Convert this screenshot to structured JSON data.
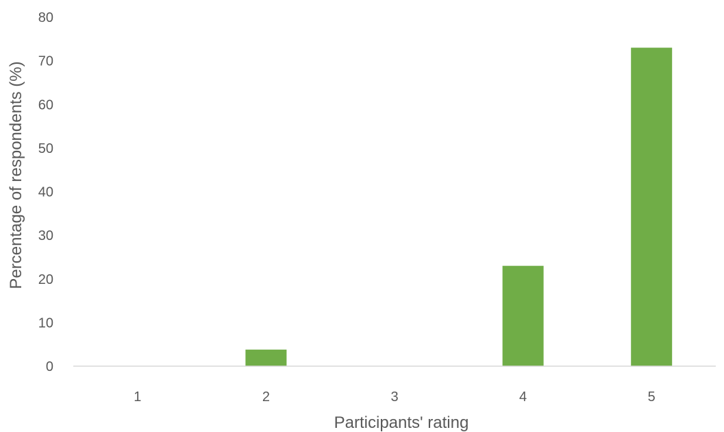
{
  "chart_data": {
    "type": "bar",
    "title": "",
    "xlabel": "Participants' rating",
    "ylabel": "Percentage of respondents (%)",
    "categories": [
      "1",
      "2",
      "3",
      "4",
      "5"
    ],
    "series": [
      {
        "values": [
          0,
          3.8,
          0,
          23,
          73
        ]
      }
    ],
    "ylim": [
      0,
      80
    ],
    "yticks": [
      "0",
      "10",
      "20",
      "30",
      "40",
      "50",
      "60",
      "70",
      "80"
    ],
    "grid": false,
    "legend": "none",
    "colors": {
      "bar": "#70ad47",
      "axis": "#d9d9d9",
      "text": "#595959"
    }
  }
}
